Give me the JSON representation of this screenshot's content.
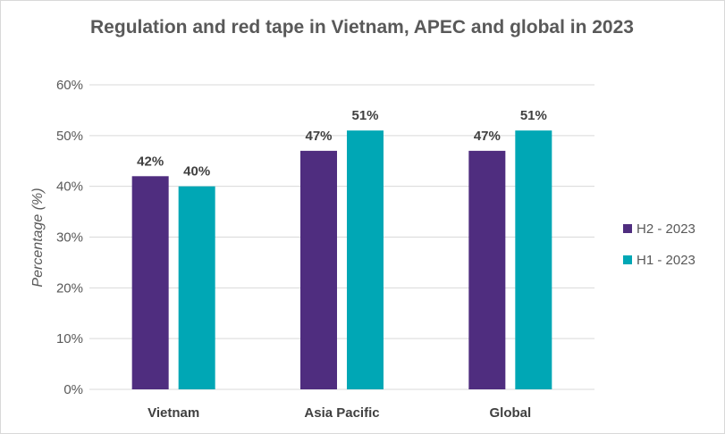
{
  "chart_data": {
    "type": "bar",
    "title": "Regulation and red tape in Vietnam, APEC and global in 2023",
    "xlabel": "",
    "ylabel": "Percentage (%)",
    "ylim": [
      0,
      60
    ],
    "yticks": [
      "0%",
      "10%",
      "20%",
      "30%",
      "40%",
      "50%",
      "60%"
    ],
    "grid": true,
    "legend_position": "right",
    "categories": [
      "Vietnam",
      "Asia Pacific",
      "Global"
    ],
    "series": [
      {
        "name": "H2 - 2023",
        "color": "#4F2D7F",
        "values": [
          42,
          47,
          47
        ],
        "labels": [
          "42%",
          "47%",
          "47%"
        ]
      },
      {
        "name": "H1 - 2023",
        "color": "#00A7B5",
        "values": [
          40,
          51,
          51
        ],
        "labels": [
          "40%",
          "51%",
          "51%"
        ]
      }
    ]
  }
}
